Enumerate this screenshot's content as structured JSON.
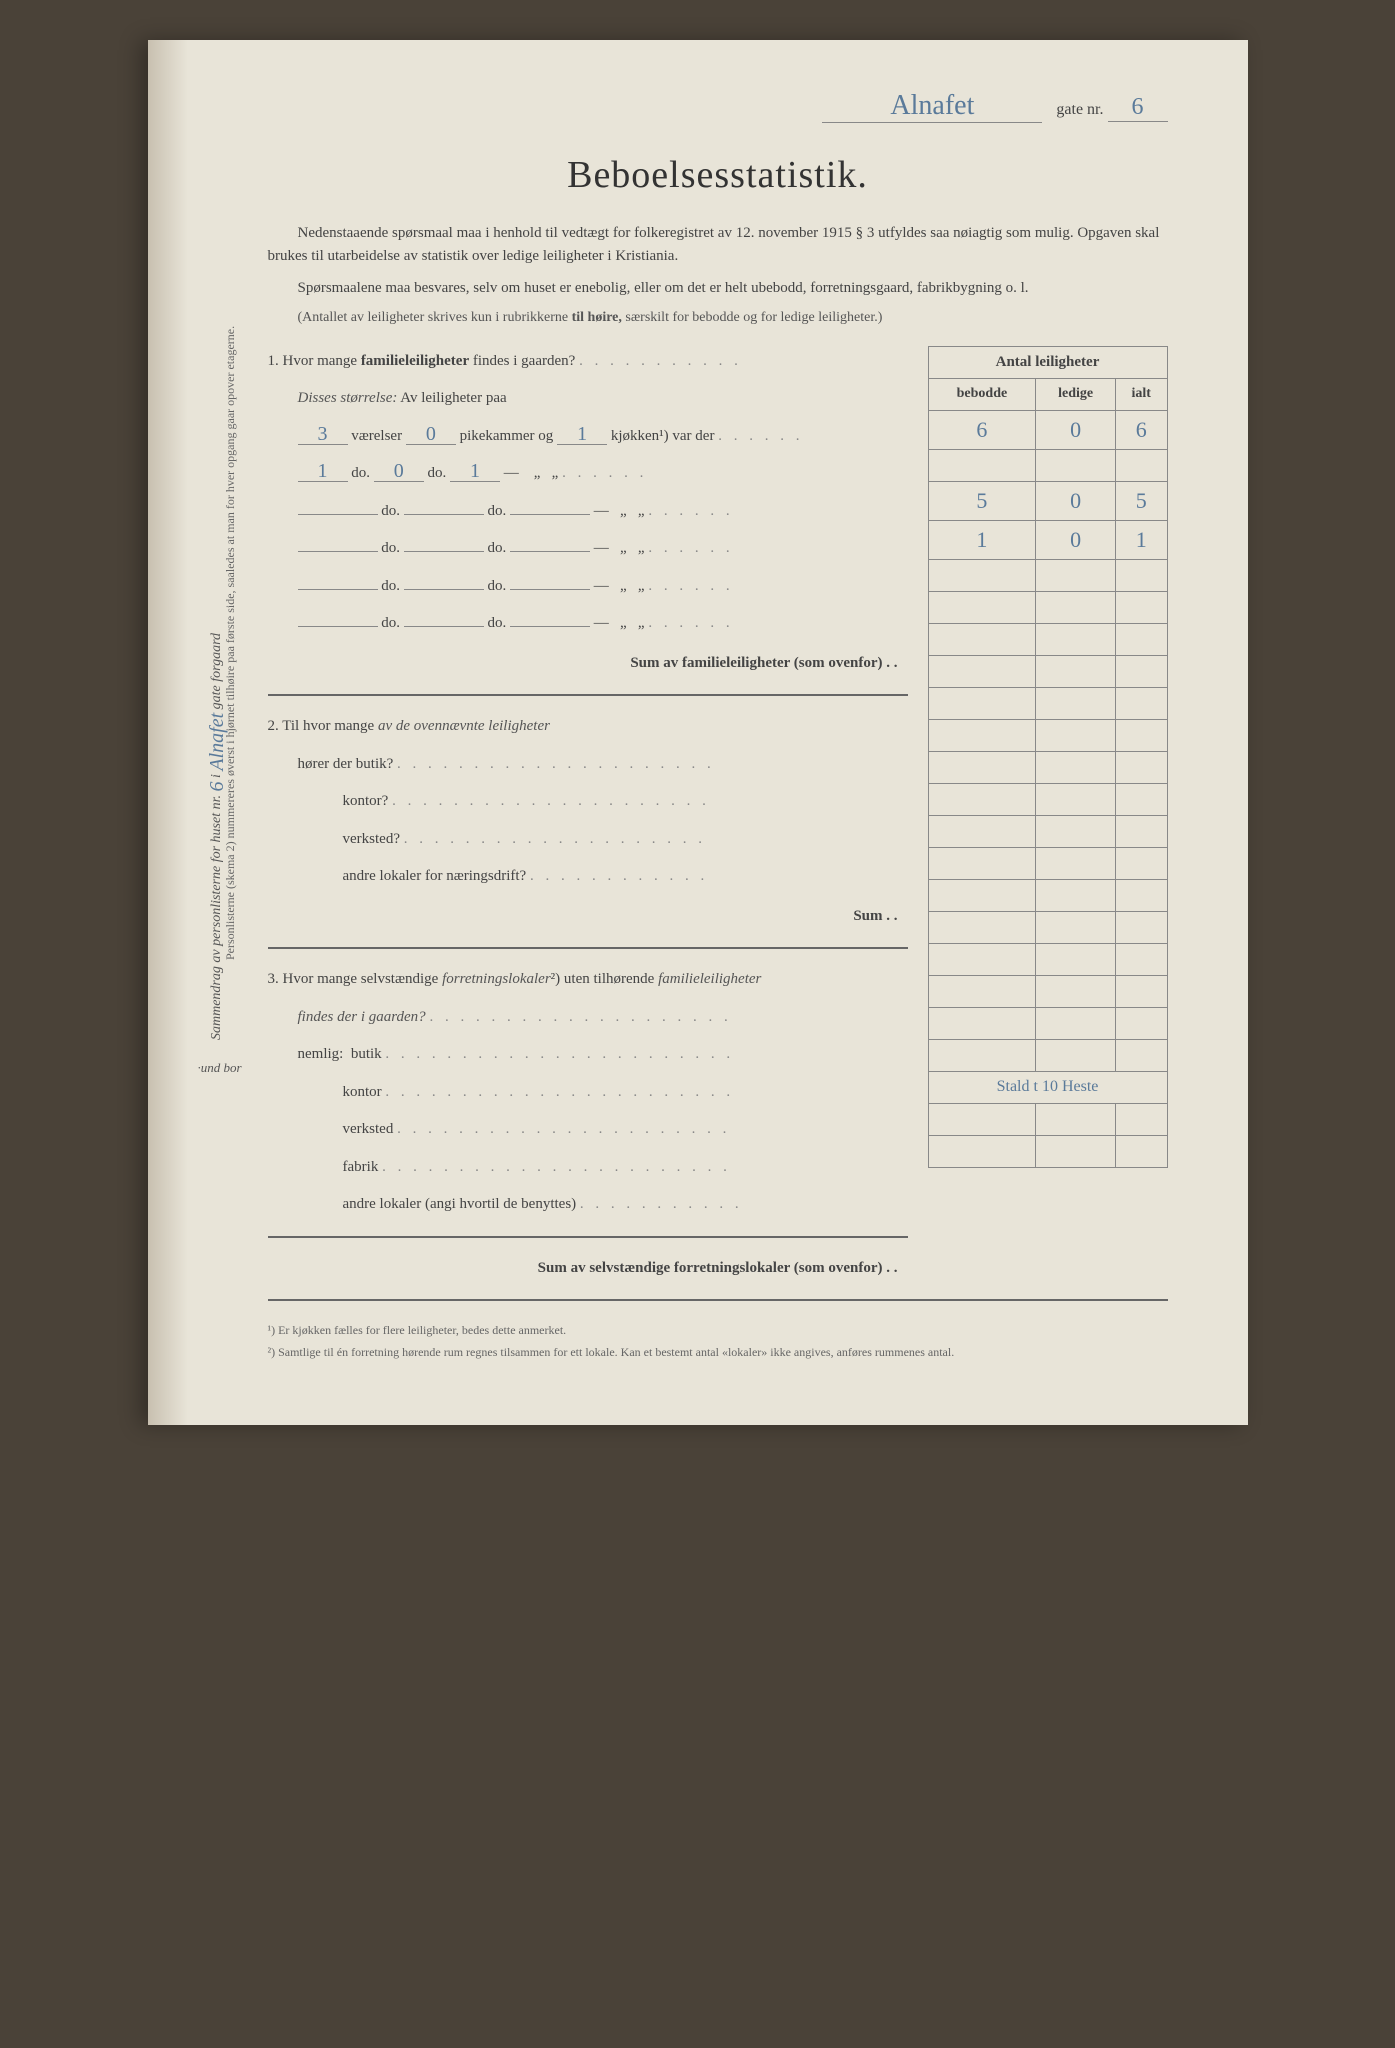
{
  "header": {
    "street_name": "Alnafet",
    "gate_label": "gate nr.",
    "gate_nr": "6"
  },
  "title": "Beboelsesstatistik.",
  "intro1": "Nedenstaaende spørsmaal maa i henhold til vedtægt for folkeregistret av 12. november 1915 § 3 utfyldes saa nøiagtig som mulig. Opgaven skal brukes til utarbeidelse av statistik over ledige leiligheter i Kristiania.",
  "intro2": "Spørsmaalene maa besvares, selv om huset er enebolig, eller om det er helt ubebodd, forretningsgaard, fabrikbygning o. l.",
  "note": "(Antallet av leiligheter skrives kun i rubrikkerne til høire, særskilt for bebodde og for ledige leiligheter.)",
  "table_header": {
    "main": "Antal leiligheter",
    "col1": "bebodde",
    "col2": "ledige",
    "col3": "ialt"
  },
  "q1": {
    "text": "1. Hvor mange",
    "bold": "familieleiligheter",
    "text2": "findes i gaarden?",
    "disses": "Disses størrelse:",
    "av": "Av leiligheter paa",
    "row1": {
      "vaer": "3",
      "pik": "0",
      "kjok": "1",
      "beb": "5",
      "led": "0",
      "ialt": "5"
    },
    "row2": {
      "vaer": "1",
      "pik": "0",
      "kjok": "1",
      "beb": "1",
      "led": "0",
      "ialt": "1"
    },
    "total": {
      "beb": "6",
      "led": "0",
      "ialt": "6"
    },
    "label_vaer": "værelser",
    "label_pik": "pikekammer og",
    "label_kjok": "kjøkken",
    "label_var": "var der",
    "label_do": "do.",
    "sum": "Sum av familieleiligheter",
    "sum_suffix": "(som ovenfor) . ."
  },
  "q2": {
    "text": "2. Til hvor mange",
    "italic": "av de ovennævnte leiligheter",
    "horer": "hører der butik?",
    "kontor": "kontor?",
    "verksted": "verksted?",
    "andre": "andre lokaler for næringsdrift?",
    "sum": "Sum . ."
  },
  "q3": {
    "text": "3. Hvor mange selvstændige",
    "italic1": "forretningslokaler",
    "text2": "uten tilhørende",
    "italic2": "familieleiligheter",
    "findes": "findes der i gaarden?",
    "nemlig": "nemlig:",
    "butik": "butik",
    "kontor": "kontor",
    "verksted": "verksted",
    "fabrik": "fabrik",
    "fabrik_note": "Stald t 10 Heste",
    "andre": "andre lokaler (angi hvortil de benyttes)",
    "sum": "Sum av selvstændige forretningslokaler",
    "sum_suffix": "(som ovenfor) . ."
  },
  "footnotes": {
    "f1": "¹) Er kjøkken fælles for flere leiligheter, bedes dette anmerket.",
    "f2": "²) Samtlige til én forretning hørende rum regnes tilsammen for ett lokale. Kan et bestemt antal «lokaler» ikke angives, anføres rummenes antal."
  },
  "margin": {
    "line1": "Sammendrag av personlisterne for huset nr.",
    "nr": "6",
    "i": "i",
    "street": "Alnafet",
    "gate": "gate",
    "forgaard": "forgaard",
    "line2": "Personlisterne (skema 2) nummereres øverst i hjørnet tilhøire paa første side, saaledes at man for hver opgang gaar opover etagerne.",
    "und_bor": "·und bor"
  }
}
